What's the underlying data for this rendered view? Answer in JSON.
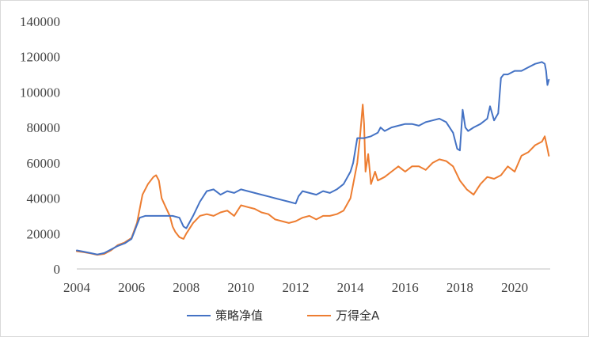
{
  "chart_data": {
    "type": "line",
    "title": "",
    "xlabel": "",
    "ylabel": "",
    "xlim": [
      2004,
      2021.3
    ],
    "ylim": [
      0,
      140000
    ],
    "y_ticks": [
      0,
      20000,
      40000,
      60000,
      80000,
      100000,
      120000,
      140000
    ],
    "y_tick_labels": [
      "0",
      "20000",
      "40000",
      "60000",
      "80000",
      "100000",
      "120000",
      "140000"
    ],
    "x_ticks": [
      2004,
      2006,
      2008,
      2010,
      2012,
      2014,
      2016,
      2018,
      2020
    ],
    "x_tick_labels": [
      "2004",
      "2006",
      "2008",
      "2010",
      "2012",
      "2014",
      "2016",
      "2018",
      "2020"
    ],
    "grid": false,
    "legend": "bottom",
    "series": [
      {
        "name": "策略净值",
        "color": "#4472C4",
        "x": [
          2004.0,
          2004.25,
          2004.5,
          2004.75,
          2005.0,
          2005.25,
          2005.5,
          2005.75,
          2006.0,
          2006.1,
          2006.2,
          2006.3,
          2006.5,
          2006.75,
          2007.0,
          2007.25,
          2007.5,
          2007.75,
          2007.9,
          2008.0,
          2008.25,
          2008.5,
          2008.75,
          2009.0,
          2009.25,
          2009.5,
          2009.75,
          2010.0,
          2010.25,
          2010.5,
          2010.75,
          2011.0,
          2011.25,
          2011.5,
          2011.75,
          2012.0,
          2012.1,
          2012.25,
          2012.5,
          2012.75,
          2013.0,
          2013.25,
          2013.5,
          2013.75,
          2014.0,
          2014.1,
          2014.25,
          2014.3,
          2014.4,
          2014.5,
          2014.75,
          2015.0,
          2015.1,
          2015.25,
          2015.5,
          2015.75,
          2016.0,
          2016.25,
          2016.5,
          2016.75,
          2017.0,
          2017.25,
          2017.5,
          2017.75,
          2017.9,
          2018.0,
          2018.1,
          2018.2,
          2018.3,
          2018.5,
          2018.75,
          2019.0,
          2019.1,
          2019.25,
          2019.4,
          2019.5,
          2019.6,
          2019.75,
          2020.0,
          2020.25,
          2020.5,
          2020.75,
          2021.0,
          2021.1,
          2021.15,
          2021.2,
          2021.25
        ],
        "values": [
          10500,
          9800,
          9000,
          8200,
          9000,
          11000,
          13000,
          14500,
          17000,
          21000,
          25000,
          29000,
          30000,
          30000,
          30000,
          30000,
          30000,
          29000,
          24000,
          23000,
          30000,
          38000,
          44000,
          45000,
          42000,
          44000,
          43000,
          45000,
          44000,
          43000,
          42000,
          41000,
          40000,
          39000,
          38000,
          37000,
          41000,
          44000,
          43000,
          42000,
          44000,
          43000,
          45000,
          48000,
          55000,
          60000,
          74000,
          74000,
          74000,
          74000,
          75000,
          77000,
          80000,
          78000,
          80000,
          81000,
          82000,
          82000,
          81000,
          83000,
          84000,
          85000,
          83000,
          77000,
          68000,
          67000,
          90000,
          80000,
          78000,
          80000,
          82000,
          85000,
          92000,
          84000,
          88000,
          108000,
          110000,
          110000,
          112000,
          112000,
          114000,
          116000,
          117000,
          116000,
          112000,
          104000,
          107000
        ]
      },
      {
        "name": "万得全A",
        "color": "#ED7D31",
        "x": [
          2004.0,
          2004.25,
          2004.5,
          2004.75,
          2005.0,
          2005.25,
          2005.5,
          2005.75,
          2006.0,
          2006.2,
          2006.4,
          2006.6,
          2006.8,
          2006.9,
          2007.0,
          2007.1,
          2007.25,
          2007.4,
          2007.5,
          2007.6,
          2007.75,
          2007.9,
          2008.0,
          2008.25,
          2008.5,
          2008.75,
          2009.0,
          2009.25,
          2009.5,
          2009.75,
          2010.0,
          2010.25,
          2010.5,
          2010.75,
          2011.0,
          2011.25,
          2011.5,
          2011.75,
          2012.0,
          2012.25,
          2012.5,
          2012.75,
          2013.0,
          2013.25,
          2013.5,
          2013.75,
          2014.0,
          2014.25,
          2014.35,
          2014.45,
          2014.5,
          2014.55,
          2014.65,
          2014.75,
          2014.9,
          2015.0,
          2015.25,
          2015.5,
          2015.75,
          2016.0,
          2016.25,
          2016.5,
          2016.75,
          2017.0,
          2017.25,
          2017.5,
          2017.75,
          2018.0,
          2018.25,
          2018.5,
          2018.75,
          2019.0,
          2019.25,
          2019.5,
          2019.75,
          2020.0,
          2020.25,
          2020.5,
          2020.75,
          2021.0,
          2021.1,
          2021.2,
          2021.25
        ],
        "values": [
          10000,
          9500,
          8800,
          8000,
          8500,
          10500,
          13500,
          15000,
          17500,
          26000,
          42000,
          48000,
          52000,
          53000,
          50000,
          40000,
          35000,
          30000,
          24000,
          21000,
          18000,
          17000,
          20000,
          26000,
          30000,
          31000,
          30000,
          32000,
          33000,
          30000,
          36000,
          35000,
          34000,
          32000,
          31000,
          28000,
          27000,
          26000,
          27000,
          29000,
          30000,
          28000,
          30000,
          30000,
          31000,
          33000,
          40000,
          60000,
          75000,
          93000,
          82000,
          55000,
          65000,
          48000,
          55000,
          50000,
          52000,
          55000,
          58000,
          55000,
          58000,
          58000,
          56000,
          60000,
          62000,
          61000,
          58000,
          50000,
          45000,
          42000,
          48000,
          52000,
          51000,
          53000,
          58000,
          55000,
          64000,
          66000,
          70000,
          72000,
          75000,
          68000,
          64000
        ]
      }
    ]
  }
}
